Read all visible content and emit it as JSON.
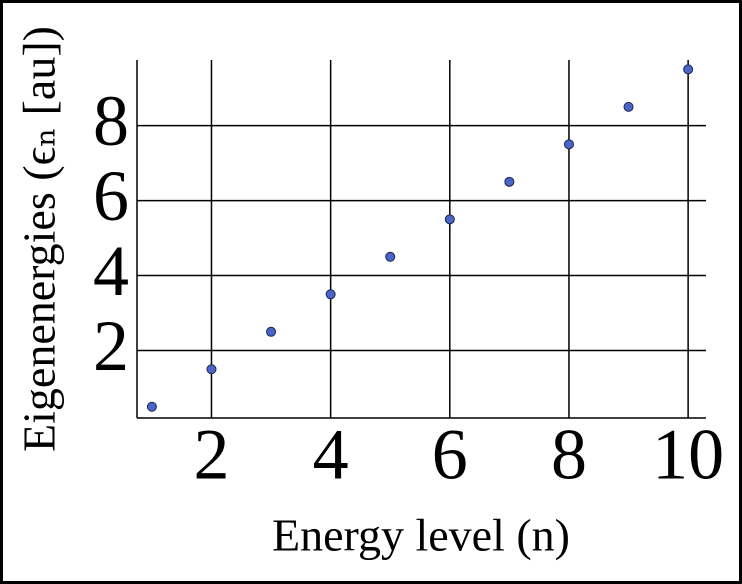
{
  "chart_data": {
    "type": "scatter",
    "x_label": "Energy level (n)",
    "y_label": "Eigenenergies (ϵₙ [au])",
    "x": [
      1,
      2,
      3,
      4,
      5,
      6,
      7,
      8,
      9,
      10
    ],
    "series": [
      {
        "color": "#4a64c8",
        "values": [
          0.5,
          1.5,
          2.5,
          3.5,
          4.5,
          5.5,
          6.5,
          7.5,
          8.5,
          9.5
        ]
      }
    ],
    "xlim": [
      0.75,
      10.3
    ],
    "ylim": [
      0.2,
      9.75
    ],
    "xticks": [
      2,
      4,
      6,
      8,
      10
    ],
    "yticks": [
      2,
      4,
      6,
      8
    ],
    "grid": true
  }
}
